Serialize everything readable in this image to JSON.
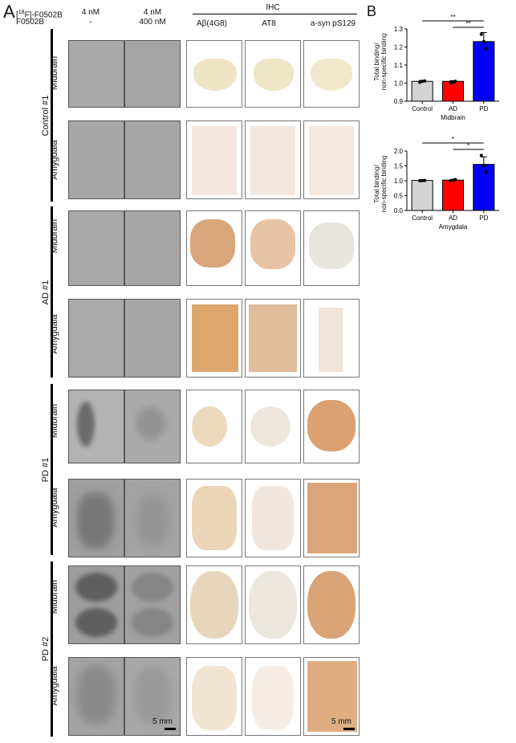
{
  "panel_a": {
    "letter": "A",
    "header_tracer": "[18F]-F0502B",
    "header_tracer_super": "18",
    "header_tracer_rest": "F]-F0502B",
    "header_tracer_open": "[",
    "header_blocker": "F0502B",
    "col1_conc": "4 nM",
    "col1_block": "-",
    "col2_conc": "4 nM",
    "col2_block": "400 nM",
    "ihc_title": "IHC",
    "ihc_cols": [
      "Aβ(4G8)",
      "AT8",
      "a-syn pS129"
    ],
    "groups": [
      "Control #1",
      "AD #1",
      "PD #1",
      "PD #2"
    ],
    "regions": [
      "Midbrain",
      "Amygdala"
    ],
    "scale_left": "5 mm",
    "scale_right": "5 mm"
  },
  "panel_b": {
    "letter": "B",
    "ylabel_line1": "Total binding/",
    "ylabel_line2": "non-specific binding"
  },
  "chart_data": [
    {
      "type": "bar",
      "title": "",
      "xlabel": "Midbrain",
      "ylabel": "Total binding/ non-specific binding",
      "categories": [
        "Control",
        "AD",
        "PD"
      ],
      "values": [
        1.01,
        1.01,
        1.23
      ],
      "errors": [
        0.005,
        0.004,
        0.05
      ],
      "points": [
        [
          1.005,
          1.01,
          1.012
        ],
        [
          1.0,
          1.005,
          1.01
        ],
        [
          1.27,
          1.23,
          1.19
        ]
      ],
      "colors": [
        "#d3d3d3",
        "#ff0000",
        "#0000ff"
      ],
      "ylim": [
        0.9,
        1.3
      ],
      "yticks": [
        "0.9",
        "1.0",
        "1.1",
        "1.2",
        "1.3"
      ],
      "significance": [
        {
          "from": "Control",
          "to": "PD",
          "label": "**"
        },
        {
          "from": "AD",
          "to": "PD",
          "label": "**"
        }
      ]
    },
    {
      "type": "bar",
      "title": "",
      "xlabel": "Amygdala",
      "ylabel": "Total binding/ non-specific binding",
      "categories": [
        "Control",
        "AD",
        "PD"
      ],
      "values": [
        1.01,
        1.02,
        1.55
      ],
      "errors": [
        0.005,
        0.02,
        0.25
      ],
      "points": [
        [
          1.0,
          1.005,
          1.01
        ],
        [
          1.0,
          1.02,
          1.04
        ],
        [
          1.85,
          1.5,
          1.3
        ]
      ],
      "colors": [
        "#d3d3d3",
        "#ff0000",
        "#0000ff"
      ],
      "ylim": [
        0.0,
        2.0
      ],
      "yticks": [
        "0.0",
        "0.5",
        "1.0",
        "1.5",
        "2.0"
      ],
      "significance": [
        {
          "from": "Control",
          "to": "PD",
          "label": "*"
        },
        {
          "from": "AD",
          "to": "PD",
          "label": "*"
        }
      ]
    }
  ]
}
